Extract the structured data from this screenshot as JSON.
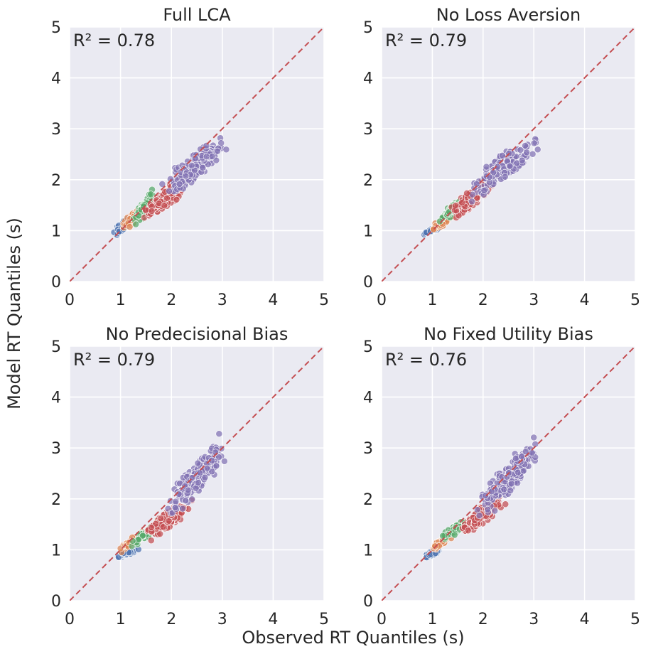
{
  "figure": {
    "xlabel": "Observed RT Quantiles (s)",
    "ylabel": "Model RT Quantiles (s)"
  },
  "colors": {
    "panel_bg": "#eaeaf2",
    "grid": "#ffffff",
    "diagonal": "#c44e52",
    "quantile_1": "#4c72b0",
    "quantile_2": "#dd8452",
    "quantile_3": "#55a868",
    "quantile_4": "#c44e52",
    "quantile_5": "#8172b3"
  },
  "chart_data": [
    {
      "type": "scatter",
      "title": "Full LCA",
      "r2_label": "R² = 0.78",
      "xlim": [
        0,
        5
      ],
      "ylim": [
        0,
        5
      ],
      "xticks": [
        "0",
        "1",
        "2",
        "3",
        "4",
        "5"
      ],
      "yticks": [
        "0",
        "1",
        "2",
        "3",
        "4",
        "5"
      ],
      "diagonal": [
        [
          0,
          0
        ],
        [
          5,
          5
        ]
      ],
      "grid": true,
      "series": [
        {
          "color": "#4c72b0",
          "x_range": [
            0.8,
            1.2
          ],
          "y_range": [
            0.8,
            1.3
          ],
          "count": 60
        },
        {
          "color": "#dd8452",
          "x_range": [
            1.0,
            1.5
          ],
          "y_range": [
            0.95,
            1.55
          ],
          "count": 70
        },
        {
          "color": "#55a868",
          "x_range": [
            1.2,
            1.7
          ],
          "y_range": [
            1.0,
            1.9
          ],
          "count": 70
        },
        {
          "color": "#c44e52",
          "x_range": [
            1.4,
            2.4
          ],
          "y_range": [
            1.1,
            2.2
          ],
          "count": 160
        },
        {
          "color": "#8172b3",
          "x_range": [
            1.7,
            3.2
          ],
          "y_range": [
            1.4,
            3.05
          ],
          "count": 200
        }
      ]
    },
    {
      "type": "scatter",
      "title": "No Loss Aversion",
      "r2_label": "R² = 0.79",
      "xlim": [
        0,
        5
      ],
      "ylim": [
        0,
        5
      ],
      "xticks": [
        "0",
        "1",
        "2",
        "3",
        "4",
        "5"
      ],
      "yticks": [
        "0",
        "1",
        "2",
        "3",
        "4",
        "5"
      ],
      "diagonal": [
        [
          0,
          0
        ],
        [
          5,
          5
        ]
      ],
      "grid": true,
      "series": [
        {
          "color": "#4c72b0",
          "x_range": [
            0.8,
            1.2
          ],
          "y_range": [
            0.9,
            1.1
          ],
          "count": 60
        },
        {
          "color": "#dd8452",
          "x_range": [
            0.95,
            1.5
          ],
          "y_range": [
            0.95,
            1.45
          ],
          "count": 70
        },
        {
          "color": "#55a868",
          "x_range": [
            1.1,
            1.7
          ],
          "y_range": [
            1.1,
            1.75
          ],
          "count": 70
        },
        {
          "color": "#c44e52",
          "x_range": [
            1.3,
            2.3
          ],
          "y_range": [
            1.1,
            2.2
          ],
          "count": 160
        },
        {
          "color": "#8172b3",
          "x_range": [
            1.6,
            3.2
          ],
          "y_range": [
            1.5,
            3.0
          ],
          "count": 200
        }
      ]
    },
    {
      "type": "scatter",
      "title": "No Predecisional Bias",
      "r2_label": "R² = 0.79",
      "xlim": [
        0,
        5
      ],
      "ylim": [
        0,
        5
      ],
      "xticks": [
        "0",
        "1",
        "2",
        "3",
        "4",
        "5"
      ],
      "yticks": [
        "0",
        "1",
        "2",
        "3",
        "4",
        "5"
      ],
      "diagonal": [
        [
          0,
          0
        ],
        [
          5,
          5
        ]
      ],
      "grid": true,
      "series": [
        {
          "color": "#4c72b0",
          "x_range": [
            0.8,
            1.4
          ],
          "y_range": [
            0.8,
            1.05
          ],
          "count": 60
        },
        {
          "color": "#dd8452",
          "x_range": [
            0.95,
            1.5
          ],
          "y_range": [
            0.9,
            1.4
          ],
          "count": 70
        },
        {
          "color": "#55a868",
          "x_range": [
            1.1,
            2.0
          ],
          "y_range": [
            1.0,
            1.7
          ],
          "count": 70
        },
        {
          "color": "#c44e52",
          "x_range": [
            1.4,
            2.5
          ],
          "y_range": [
            1.1,
            2.1
          ],
          "count": 160
        },
        {
          "color": "#8172b3",
          "x_range": [
            1.8,
            3.2
          ],
          "y_range": [
            1.4,
            3.45
          ],
          "count": 200
        }
      ]
    },
    {
      "type": "scatter",
      "title": "No Fixed Utility Bias",
      "r2_label": "R² = 0.76",
      "xlim": [
        0,
        5
      ],
      "ylim": [
        0,
        5
      ],
      "xticks": [
        "0",
        "1",
        "2",
        "3",
        "4",
        "5"
      ],
      "yticks": [
        "0",
        "1",
        "2",
        "3",
        "4",
        "5"
      ],
      "diagonal": [
        [
          0,
          0
        ],
        [
          5,
          5
        ]
      ],
      "grid": true,
      "series": [
        {
          "color": "#4c72b0",
          "x_range": [
            0.8,
            1.2
          ],
          "y_range": [
            0.8,
            1.05
          ],
          "count": 60
        },
        {
          "color": "#dd8452",
          "x_range": [
            0.95,
            1.4
          ],
          "y_range": [
            0.95,
            1.35
          ],
          "count": 70
        },
        {
          "color": "#55a868",
          "x_range": [
            1.1,
            1.8
          ],
          "y_range": [
            1.1,
            1.7
          ],
          "count": 70
        },
        {
          "color": "#c44e52",
          "x_range": [
            1.4,
            2.5
          ],
          "y_range": [
            1.1,
            2.25
          ],
          "count": 160
        },
        {
          "color": "#8172b3",
          "x_range": [
            1.8,
            3.2
          ],
          "y_range": [
            1.5,
            3.3
          ],
          "count": 200
        }
      ]
    }
  ]
}
